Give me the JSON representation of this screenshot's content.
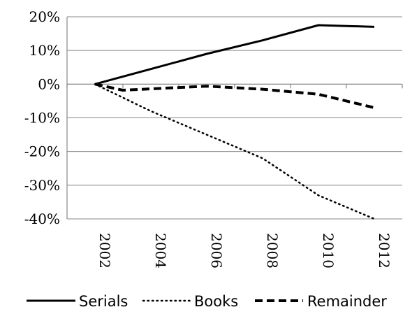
{
  "chart_data": {
    "type": "line",
    "title": "",
    "xlabel": "",
    "ylabel": "",
    "x": [
      2002,
      2004,
      2006,
      2008,
      2010,
      2012
    ],
    "x_tick_labels": [
      "2002",
      "2004",
      "2006",
      "2008",
      "2010",
      "2012"
    ],
    "y_tick_labels": [
      "20%",
      "10%",
      "0%",
      "-10%",
      "-20%",
      "-30%",
      "-40%"
    ],
    "y_ticks": [
      20,
      10,
      0,
      -10,
      -20,
      -30,
      -40
    ],
    "ylim": [
      -40,
      20
    ],
    "xlim": [
      2001,
      2013
    ],
    "grid": "horizontal",
    "legend_position": "bottom",
    "series": [
      {
        "name": "Serials",
        "style": "solid",
        "color": "#000000",
        "x": [
          2002,
          2004,
          2006,
          2008,
          2010,
          2012
        ],
        "values": [
          0,
          4.5,
          9,
          13,
          17.5,
          17
        ]
      },
      {
        "name": "Books",
        "style": "dotted",
        "color": "#000000",
        "x": [
          2002,
          2004,
          2006,
          2008,
          2010,
          2012
        ],
        "values": [
          0,
          -8,
          -15,
          -22,
          -33,
          -40
        ]
      },
      {
        "name": "Remainder",
        "style": "dashed",
        "color": "#000000",
        "x": [
          2002,
          2003,
          2006,
          2008,
          2010,
          2012
        ],
        "values": [
          0,
          -1.8,
          -0.6,
          -1.5,
          -3,
          -7
        ]
      }
    ]
  }
}
